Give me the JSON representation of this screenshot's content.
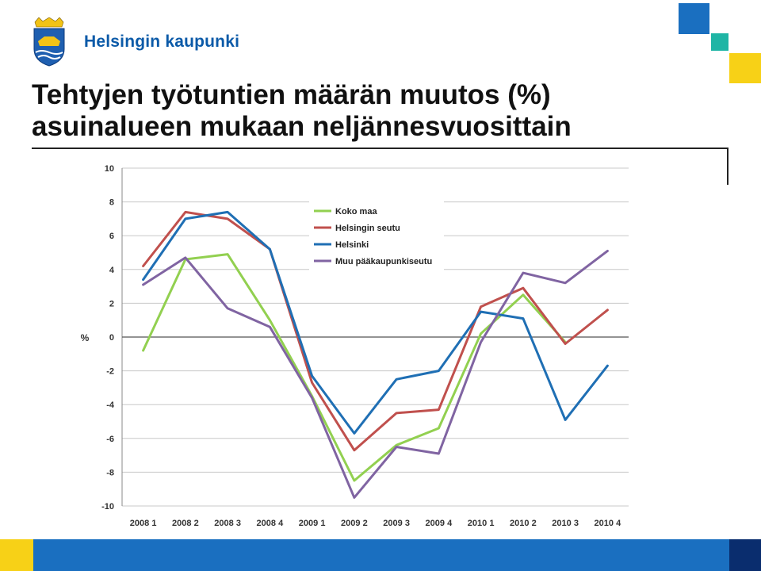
{
  "brand": {
    "name": "Helsingin kaupunki",
    "logo_icon": "helsinki-coat-of-arms-icon"
  },
  "slide": {
    "title_line1": "Tehtyjen työtuntien määrän muutos (%)",
    "title_line2": "asuinalueen mukaan neljännesvuosittain"
  },
  "colors": {
    "brand_blue": "#0b5aa8",
    "deco_blue": "#1a6fc0",
    "deco_teal": "#1fb5a5",
    "deco_yellow": "#f7d117",
    "footer_navy": "#0a2d6e"
  },
  "chart_data": {
    "type": "line",
    "ylabel": "%",
    "ylim": [
      -10,
      10
    ],
    "yticks": [
      10,
      8,
      6,
      4,
      2,
      0,
      -2,
      -4,
      -6,
      -8,
      -10
    ],
    "grid": true,
    "legend_position": "top-center",
    "categories": [
      "2008 1",
      "2008 2",
      "2008 3",
      "2008 4",
      "2009 1",
      "2009 2",
      "2009 3",
      "2009 4",
      "2010 1",
      "2010 2",
      "2010 3",
      "2010 4"
    ],
    "series": [
      {
        "name": "Koko maa",
        "color": "#92d050",
        "values": [
          -0.8,
          4.6,
          4.9,
          1.0,
          -3.5,
          -8.5,
          -6.4,
          -5.4,
          0.2,
          2.5,
          -0.3,
          null
        ]
      },
      {
        "name": "Helsingin seutu",
        "color": "#c0504d",
        "values": [
          4.2,
          7.4,
          7.0,
          5.2,
          -2.7,
          -6.7,
          -4.5,
          -4.3,
          1.8,
          2.9,
          -0.4,
          1.6
        ]
      },
      {
        "name": "Helsinki",
        "color": "#1f6fb4",
        "values": [
          3.4,
          7.0,
          7.4,
          5.2,
          -2.3,
          -5.7,
          -2.5,
          -2.0,
          1.5,
          1.1,
          -4.9,
          -1.7
        ]
      },
      {
        "name": "Muu pääkaupunkiseutu",
        "color": "#8064a2",
        "values": [
          3.1,
          4.7,
          1.7,
          0.6,
          -3.6,
          -9.5,
          -6.5,
          -6.9,
          -0.3,
          3.8,
          3.2,
          5.1
        ]
      }
    ]
  }
}
